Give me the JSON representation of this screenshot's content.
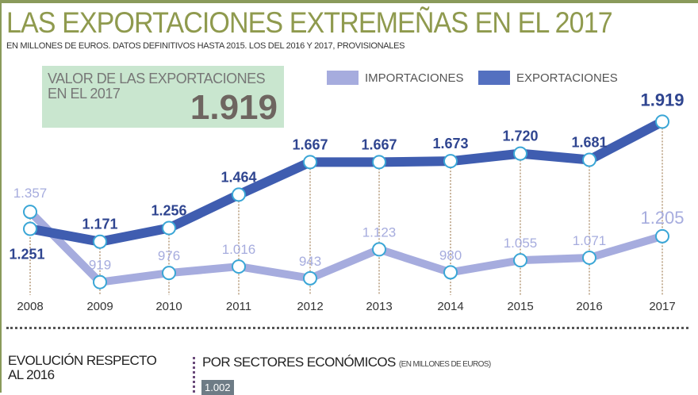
{
  "title": "LAS EXPORTACIONES EXTREMEÑAS EN EL 2017",
  "subtitle": "EN MILLONES DE EUROS. DATOS DEFINITIVOS HASTA 2015. LOS DEL 2016 Y 2017, PROVISIONALES",
  "kpi": {
    "label": "VALOR DE LAS EXPORTACIONES EN EL 2017",
    "value": "1.919"
  },
  "bottom": {
    "evolution": "EVOLUCIÓN RESPECTO AL 2016",
    "sectors": "POR SECTORES ECONÓMICOS",
    "sectors_unit": "(EN MILLONES DE EUROS)",
    "first_value": "1.002"
  },
  "chart_data": {
    "type": "line",
    "x": [
      "2008",
      "2009",
      "2010",
      "2011",
      "2012",
      "2013",
      "2014",
      "2015",
      "2016",
      "2017"
    ],
    "ylim": [
      700,
      2000
    ],
    "grid": false,
    "legend": "top",
    "series": [
      {
        "name": "IMPORTACIONES",
        "color": "#a6acde",
        "values": [
          1357,
          919,
          976,
          1016,
          943,
          1123,
          980,
          1055,
          1071,
          1205
        ],
        "labels": [
          "1.357",
          "919",
          "976",
          "1.016",
          "943",
          "1.123",
          "980",
          "1.055",
          "1.071",
          "1.205"
        ]
      },
      {
        "name": "EXPORTACIONES",
        "color": "#3f5db0",
        "values": [
          1251,
          1171,
          1256,
          1464,
          1667,
          1667,
          1673,
          1720,
          1681,
          1919
        ],
        "labels": [
          "1.251",
          "1.171",
          "1.256",
          "1.464",
          "1.667",
          "1.667",
          "1.673",
          "1.720",
          "1.681",
          "1.919"
        ]
      }
    ]
  }
}
